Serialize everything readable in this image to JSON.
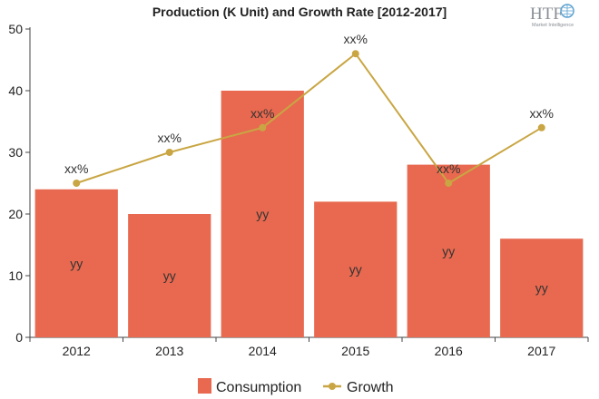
{
  "logo": {
    "text": "HTF",
    "subtext": "Market Intelligence"
  },
  "colors": {
    "bar": "#e8694f",
    "line": "#c9a643",
    "axis": "#444444"
  },
  "chart_data": {
    "type": "bar",
    "title": "Production (K Unit) and Growth Rate [2012-2017]",
    "categories": [
      "2012",
      "2013",
      "2014",
      "2015",
      "2016",
      "2017"
    ],
    "ylim": [
      0,
      50
    ],
    "yticks": [
      0,
      10,
      20,
      30,
      40,
      50
    ],
    "grid": false,
    "legend_position": "bottom-center",
    "series": [
      {
        "name": "Consumption",
        "type": "bar",
        "values": [
          24,
          20,
          40,
          22,
          28,
          16
        ],
        "labels": [
          "yy",
          "yy",
          "yy",
          "yy",
          "yy",
          "yy"
        ]
      },
      {
        "name": "Growth",
        "type": "line",
        "values": [
          25,
          30,
          34,
          46,
          25,
          34
        ],
        "labels": [
          "xx%",
          "xx%",
          "xx%",
          "xx%",
          "xx%",
          "xx%"
        ]
      }
    ]
  }
}
